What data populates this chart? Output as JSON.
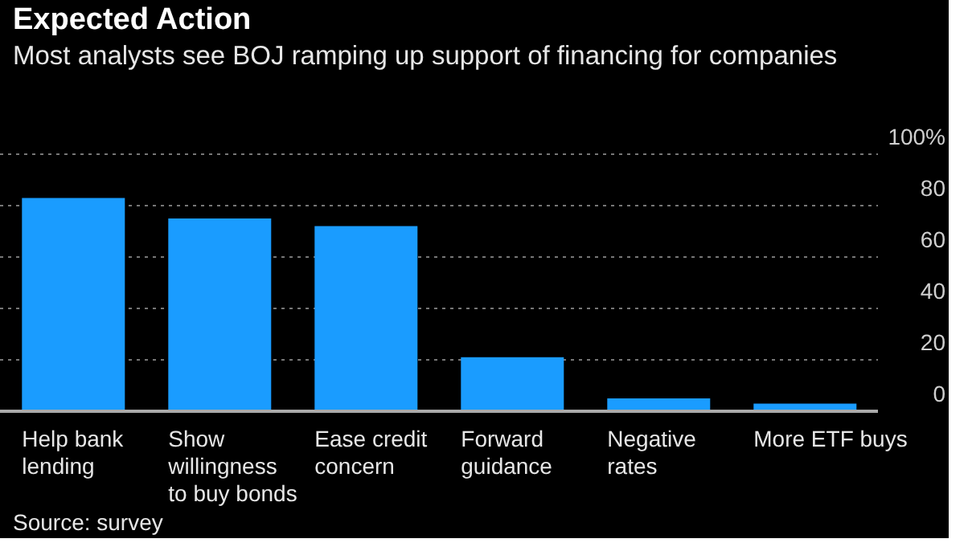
{
  "chart_data": {
    "type": "bar",
    "title": "Expected Action",
    "subtitle": "Most analysts see BOJ ramping up support of financing for companies",
    "categories": [
      "Help bank lending",
      "Show willingness to buy bonds",
      "Ease credit concern",
      "Forward guidance",
      "Negative rates",
      "More ETF buys"
    ],
    "values": [
      83,
      75,
      72,
      21,
      5,
      3
    ],
    "color": "#1a9cff",
    "ylim": [
      0,
      100
    ],
    "yticks": [
      0,
      20,
      40,
      60,
      80,
      {
        "value": 100,
        "label": "100%"
      }
    ],
    "grid": "y",
    "annotations": [
      "Source: survey"
    ]
  }
}
